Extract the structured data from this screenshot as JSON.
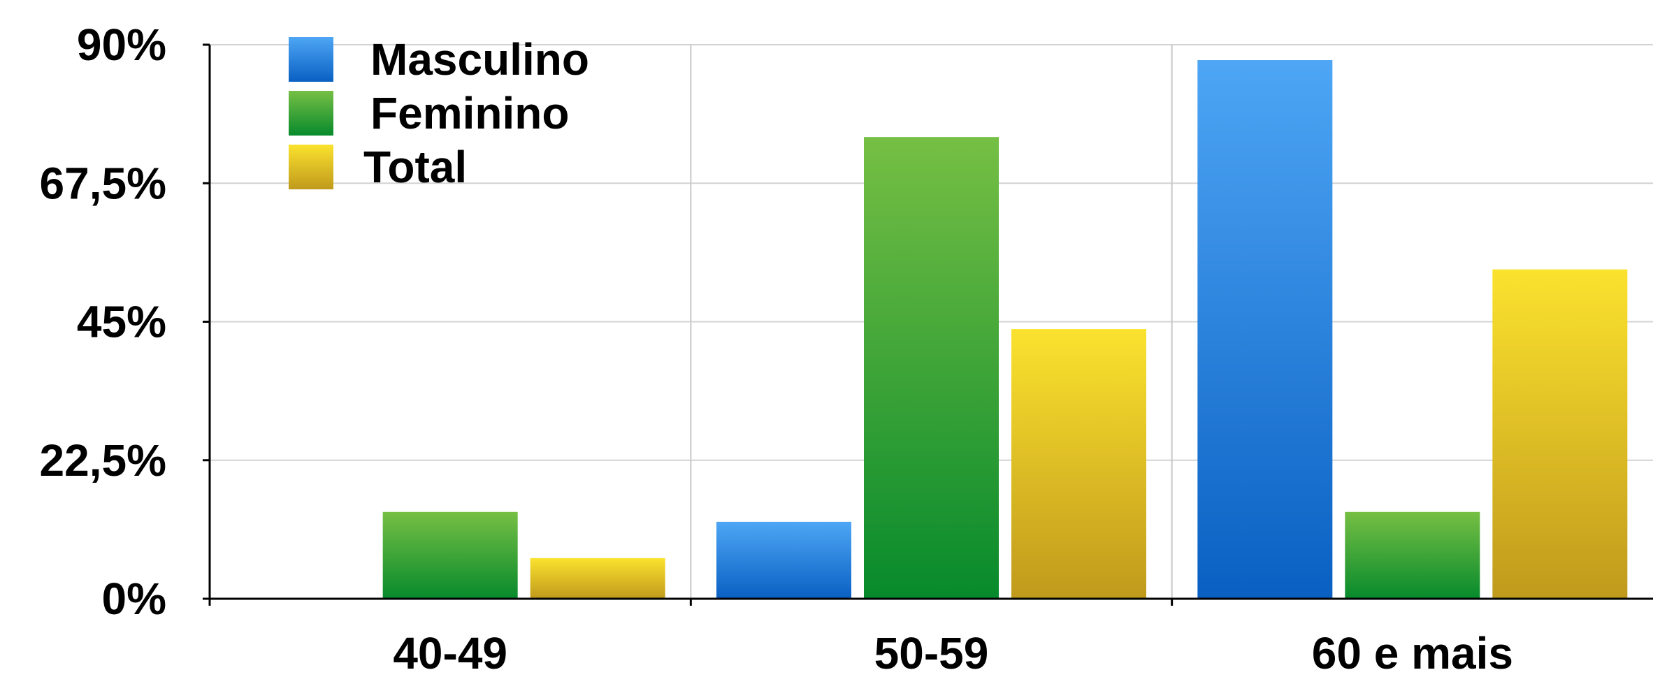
{
  "chart_data": {
    "type": "bar",
    "categories": [
      "40-49",
      "50-59",
      "60 e mais"
    ],
    "series": [
      {
        "name": "Masculino",
        "values": [
          0,
          12.5,
          87.5
        ],
        "color": "#2a86e0"
      },
      {
        "name": "Feminino",
        "values": [
          14.1,
          75,
          14.1
        ],
        "color": "#2fa33f"
      },
      {
        "name": "Total",
        "values": [
          6.6,
          43.8,
          53.5
        ],
        "color": "#e6c727"
      }
    ],
    "y_ticks": [
      "0%",
      "22,5%",
      "45%",
      "67,5%",
      "90%"
    ],
    "ylim": [
      0,
      90
    ],
    "title": "",
    "xlabel": "",
    "ylabel": "",
    "grid": true,
    "legend_position": "top-left"
  }
}
